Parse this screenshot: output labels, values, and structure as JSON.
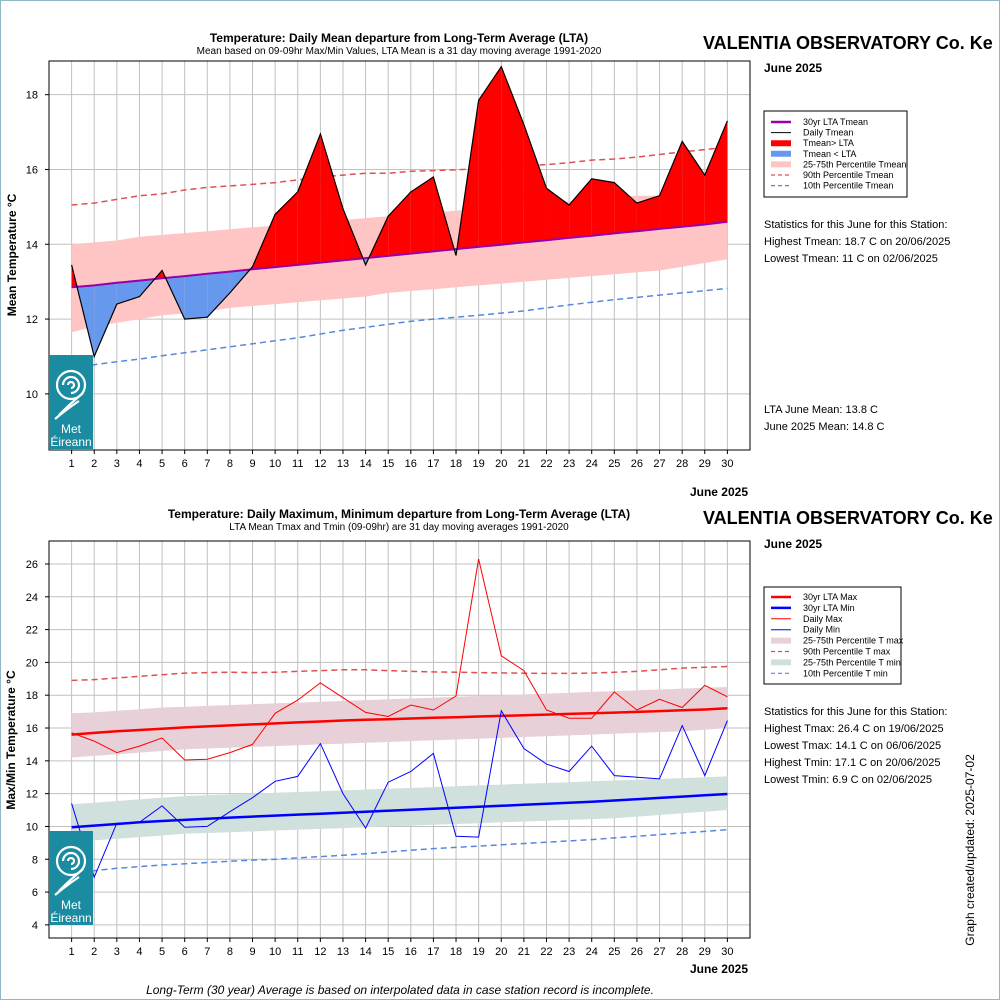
{
  "colors": {
    "red": "#ff0000",
    "blue": "#0000ff",
    "purple": "#9900aa",
    "above_fill": "#ff0000",
    "below_fill": "#6699ee",
    "band_mean": "#ffc4c4",
    "pct90": "#e05050",
    "pct10": "#5588dd",
    "band_max": "#e8d0d8",
    "band_min": "#d0e0dc",
    "logo_bg": "#1a8ba0",
    "grid": "#c0c0c0"
  },
  "footer": "Long-Term (30 year) Average is based on interpolated data in case station record is incomplete.",
  "stamp": "Graph created/updated:  2025-07-02",
  "logo": {
    "line1": "Met",
    "line2": "Éireann"
  },
  "chart_data": [
    {
      "type": "area",
      "title": "Temperature: Daily Mean departure from Long-Term Average (LTA)",
      "subtitle": "Mean based on 09-09hr Max/Min Values, LTA Mean is a 31 day moving average 1991-2020",
      "station": "VALENTIA OBSERVATORY Co. Ke",
      "month_label": "June 2025",
      "xlabel": "June 2025",
      "ylabel": "Mean Temperature °C",
      "xlim": [
        0,
        31
      ],
      "ylim": [
        8.5,
        18.9
      ],
      "yticks": [
        10,
        12,
        14,
        16,
        18
      ],
      "x": [
        1,
        2,
        3,
        4,
        5,
        6,
        7,
        8,
        9,
        10,
        11,
        12,
        13,
        14,
        15,
        16,
        17,
        18,
        19,
        20,
        21,
        22,
        23,
        24,
        25,
        26,
        27,
        28,
        29,
        30
      ],
      "series": [
        {
          "name": "Daily Tmean",
          "values": [
            13.45,
            11.0,
            12.4,
            12.6,
            13.3,
            12.0,
            12.05,
            12.7,
            13.4,
            14.8,
            15.4,
            16.95,
            14.95,
            13.45,
            14.75,
            15.4,
            15.8,
            13.7,
            17.85,
            18.75,
            17.2,
            15.5,
            15.05,
            15.75,
            15.65,
            15.1,
            15.3,
            16.75,
            15.85,
            17.3
          ]
        },
        {
          "name": "30yr LTA Tmean",
          "values": [
            12.85,
            12.9,
            12.97,
            13.03,
            13.09,
            13.15,
            13.21,
            13.27,
            13.33,
            13.39,
            13.45,
            13.51,
            13.57,
            13.63,
            13.69,
            13.75,
            13.81,
            13.87,
            13.93,
            13.99,
            14.05,
            14.11,
            14.17,
            14.23,
            14.29,
            14.35,
            14.41,
            14.47,
            14.53,
            14.6
          ]
        },
        {
          "name": "25-75th Percentile Tmean",
          "lower": [
            11.65,
            11.8,
            11.9,
            12.0,
            12.1,
            12.15,
            12.2,
            12.3,
            12.35,
            12.4,
            12.45,
            12.5,
            12.55,
            12.6,
            12.7,
            12.75,
            12.8,
            12.85,
            12.9,
            12.95,
            13.0,
            13.05,
            13.1,
            13.15,
            13.2,
            13.25,
            13.3,
            13.4,
            13.5,
            13.6
          ],
          "upper": [
            14.0,
            14.05,
            14.1,
            14.2,
            14.25,
            14.3,
            14.35,
            14.4,
            14.45,
            14.5,
            14.55,
            14.6,
            14.65,
            14.7,
            14.75,
            14.8,
            14.85,
            14.9,
            14.95,
            15.0,
            15.05,
            15.1,
            15.15,
            15.2,
            15.25,
            15.3,
            15.3,
            15.35,
            15.4,
            15.4
          ]
        },
        {
          "name": "90th Percentile Tmean",
          "values": [
            15.05,
            15.1,
            15.2,
            15.3,
            15.35,
            15.45,
            15.52,
            15.56,
            15.6,
            15.65,
            15.72,
            15.8,
            15.85,
            15.9,
            15.9,
            15.95,
            15.97,
            15.99,
            16.02,
            16.06,
            16.1,
            16.13,
            16.18,
            16.25,
            16.28,
            16.33,
            16.4,
            16.47,
            16.53,
            16.6
          ]
        },
        {
          "name": "10th Percentile Tmean",
          "values": [
            10.7,
            10.78,
            10.86,
            10.93,
            11.02,
            11.1,
            11.18,
            11.26,
            11.34,
            11.42,
            11.5,
            11.6,
            11.7,
            11.78,
            11.86,
            11.94,
            12.0,
            12.05,
            12.1,
            12.16,
            12.22,
            12.3,
            12.38,
            12.45,
            12.52,
            12.58,
            12.64,
            12.7,
            12.76,
            12.82
          ]
        }
      ],
      "legend": [
        "30yr LTA Tmean",
        "Daily Tmean",
        "Tmean> LTA",
        "Tmean < LTA",
        "25-75th Percentile Tmean",
        "90th Percentile Tmean",
        "10th Percentile Tmean"
      ],
      "stats_title": "Statistics for this June for this Station:",
      "stats": [
        "Highest Tmean: 18.7 C on 20/06/2025",
        "Lowest Tmean: 11 C on 02/06/2025"
      ],
      "means": [
        "LTA June Mean: 13.8 C",
        "June 2025 Mean: 14.8 C"
      ]
    },
    {
      "type": "line",
      "title": "Temperature: Daily Maximum, Minimum departure from Long-Term Average (LTA)",
      "subtitle": "LTA Mean Tmax and Tmin (09-09hr) are 31 day moving averages 1991-2020",
      "station": "VALENTIA OBSERVATORY Co. Ke",
      "month_label": "June 2025",
      "xlabel": "June 2025",
      "ylabel": "Max/Min Temperature °C",
      "xlim": [
        0,
        31
      ],
      "ylim": [
        3.2,
        27.4
      ],
      "yticks": [
        4,
        6,
        8,
        10,
        12,
        14,
        16,
        18,
        20,
        22,
        24,
        26
      ],
      "x": [
        1,
        2,
        3,
        4,
        5,
        6,
        7,
        8,
        9,
        10,
        11,
        12,
        13,
        14,
        15,
        16,
        17,
        18,
        19,
        20,
        21,
        22,
        23,
        24,
        25,
        26,
        27,
        28,
        29,
        30
      ],
      "series": [
        {
          "name": "Daily Max",
          "values": [
            15.7,
            15.2,
            14.5,
            14.9,
            15.4,
            14.05,
            14.1,
            14.5,
            15.0,
            16.9,
            17.7,
            18.75,
            17.85,
            16.95,
            16.7,
            17.4,
            17.1,
            17.95,
            26.3,
            20.4,
            19.5,
            17.1,
            16.6,
            16.6,
            18.2,
            17.1,
            17.75,
            17.25,
            18.6,
            17.9
          ]
        },
        {
          "name": "Daily Min",
          "values": [
            11.4,
            6.9,
            10.2,
            10.25,
            11.25,
            9.95,
            10.0,
            10.9,
            11.75,
            12.75,
            13.05,
            15.05,
            12.0,
            9.9,
            12.7,
            13.35,
            14.45,
            9.4,
            9.35,
            17.05,
            14.75,
            13.8,
            13.35,
            14.9,
            13.1,
            13.0,
            12.9,
            16.15,
            13.1,
            16.45
          ]
        },
        {
          "name": "30yr LTA Max",
          "values": [
            15.6,
            15.7,
            15.8,
            15.88,
            15.96,
            16.04,
            16.1,
            16.16,
            16.22,
            16.28,
            16.34,
            16.4,
            16.46,
            16.5,
            16.54,
            16.58,
            16.62,
            16.66,
            16.7,
            16.74,
            16.78,
            16.82,
            16.86,
            16.9,
            16.94,
            16.98,
            17.03,
            17.08,
            17.13,
            17.2
          ]
        },
        {
          "name": "30yr LTA Min",
          "values": [
            9.95,
            10.05,
            10.15,
            10.25,
            10.33,
            10.4,
            10.47,
            10.54,
            10.6,
            10.66,
            10.72,
            10.78,
            10.84,
            10.9,
            10.96,
            11.02,
            11.08,
            11.14,
            11.2,
            11.26,
            11.32,
            11.38,
            11.44,
            11.5,
            11.58,
            11.66,
            11.74,
            11.82,
            11.9,
            11.98
          ]
        },
        {
          "name": "25-75th Percentile T max",
          "lower": [
            14.2,
            14.3,
            14.4,
            14.5,
            14.6,
            14.7,
            14.75,
            14.8,
            14.85,
            14.9,
            14.95,
            15.0,
            15.05,
            15.1,
            15.15,
            15.2,
            15.25,
            15.3,
            15.35,
            15.4,
            15.45,
            15.5,
            15.55,
            15.6,
            15.65,
            15.7,
            15.75,
            15.8,
            15.9,
            16.0
          ],
          "upper": [
            16.9,
            16.95,
            17.05,
            17.15,
            17.25,
            17.3,
            17.35,
            17.4,
            17.45,
            17.5,
            17.55,
            17.6,
            17.65,
            17.7,
            17.75,
            17.8,
            17.85,
            17.9,
            17.95,
            18.0,
            18.05,
            18.1,
            18.15,
            18.2,
            18.25,
            18.3,
            18.35,
            18.4,
            18.45,
            18.5
          ]
        },
        {
          "name": "90th Percentile T max",
          "values": [
            18.9,
            18.95,
            19.05,
            19.15,
            19.25,
            19.35,
            19.38,
            19.4,
            19.38,
            19.4,
            19.45,
            19.5,
            19.55,
            19.55,
            19.5,
            19.45,
            19.42,
            19.4,
            19.38,
            19.36,
            19.34,
            19.33,
            19.33,
            19.35,
            19.4,
            19.45,
            19.55,
            19.65,
            19.7,
            19.75
          ]
        },
        {
          "name": "25-75th Percentile T min",
          "lower": [
            9.0,
            9.15,
            9.25,
            9.35,
            9.45,
            9.55,
            9.6,
            9.65,
            9.7,
            9.75,
            9.8,
            9.85,
            9.9,
            9.95,
            10.0,
            10.05,
            10.1,
            10.15,
            10.2,
            10.25,
            10.3,
            10.35,
            10.4,
            10.45,
            10.5,
            10.6,
            10.7,
            10.8,
            10.9,
            11.0
          ],
          "upper": [
            11.35,
            11.45,
            11.55,
            11.65,
            11.75,
            11.85,
            11.9,
            11.95,
            12.0,
            12.05,
            12.1,
            12.15,
            12.2,
            12.25,
            12.3,
            12.35,
            12.4,
            12.45,
            12.5,
            12.55,
            12.6,
            12.65,
            12.7,
            12.75,
            12.8,
            12.85,
            12.9,
            12.95,
            13.0,
            13.05
          ]
        },
        {
          "name": "10th Percentile T min",
          "values": [
            7.2,
            7.3,
            7.45,
            7.55,
            7.65,
            7.72,
            7.8,
            7.88,
            7.95,
            8.0,
            8.08,
            8.16,
            8.24,
            8.34,
            8.45,
            8.55,
            8.65,
            8.72,
            8.8,
            8.88,
            8.96,
            9.04,
            9.12,
            9.2,
            9.3,
            9.4,
            9.5,
            9.6,
            9.7,
            9.8
          ]
        }
      ],
      "legend": [
        "30yr LTA Max",
        "30yr LTA Min",
        "Daily Max",
        "Daily Min",
        "25-75th Percentile T max",
        "90th Percentile T max",
        "25-75th Percentile T min",
        "10th Percentile T min"
      ],
      "stats_title": "Statistics for this June for this Station:",
      "stats": [
        "Highest Tmax: 26.4 C on 19/06/2025",
        "Lowest Tmax: 14.1 C on 06/06/2025",
        "Highest Tmin: 17.1 C on 20/06/2025",
        "Lowest Tmin: 6.9 C on 02/06/2025"
      ]
    }
  ]
}
